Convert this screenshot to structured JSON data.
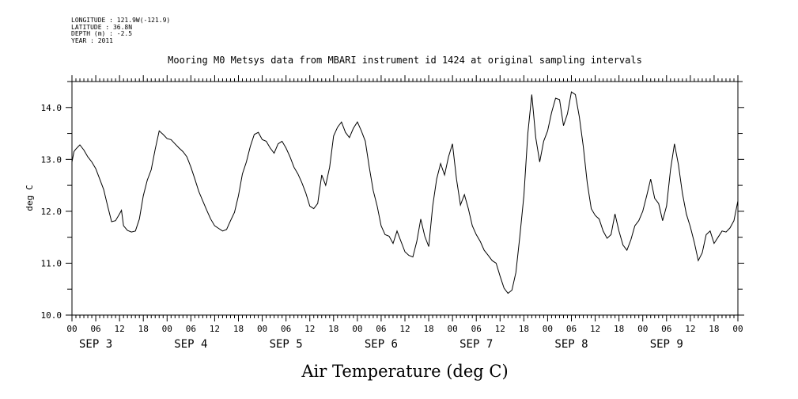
{
  "header": {
    "longitude": "LONGITUDE : 121.9W(-121.9)",
    "latitude": "LATITUDE : 36.8N",
    "depth": "DEPTH (m) : -2.5",
    "year": "YEAR : 2011"
  },
  "chart_data": {
    "type": "line",
    "title": "Mooring M0 Metsys data from MBARI instrument id 1424 at original sampling intervals",
    "xlabel": "Air Temperature (deg C)",
    "ylabel": "deg C",
    "ylim": [
      10.0,
      14.5
    ],
    "xlim_hours": [
      0,
      168
    ],
    "y_ticks": [
      "10.0",
      "11.0",
      "12.0",
      "13.0",
      "14.0"
    ],
    "x_tick_labels": [
      "00",
      "06",
      "12",
      "18",
      "00",
      "06",
      "12",
      "18",
      "00",
      "06",
      "12",
      "18",
      "00",
      "06",
      "12",
      "18",
      "00",
      "06",
      "12",
      "18",
      "00",
      "06",
      "12",
      "18",
      "00",
      "06",
      "12",
      "18",
      "00"
    ],
    "day_labels": [
      "SEP  3",
      "SEP  4",
      "SEP  5",
      "SEP  6",
      "SEP  7",
      "SEP  8",
      "SEP  9"
    ],
    "grid": false,
    "series": [
      {
        "color": "#000000",
        "points": [
          [
            0,
            12.95
          ],
          [
            0.5,
            13.15
          ],
          [
            1,
            13.2
          ],
          [
            2,
            13.28
          ],
          [
            3,
            13.18
          ],
          [
            4,
            13.05
          ],
          [
            5,
            12.95
          ],
          [
            6,
            12.82
          ],
          [
            7,
            12.62
          ],
          [
            8,
            12.42
          ],
          [
            9,
            12.1
          ],
          [
            10,
            11.8
          ],
          [
            11,
            11.82
          ],
          [
            12,
            11.95
          ],
          [
            12.5,
            12.02
          ],
          [
            13,
            11.72
          ],
          [
            14,
            11.63
          ],
          [
            15,
            11.6
          ],
          [
            16,
            11.62
          ],
          [
            17,
            11.85
          ],
          [
            18,
            12.3
          ],
          [
            19,
            12.6
          ],
          [
            20,
            12.8
          ],
          [
            21,
            13.2
          ],
          [
            22,
            13.55
          ],
          [
            23,
            13.48
          ],
          [
            24,
            13.4
          ],
          [
            25,
            13.38
          ],
          [
            26,
            13.3
          ],
          [
            27,
            13.22
          ],
          [
            28,
            13.15
          ],
          [
            29,
            13.05
          ],
          [
            30,
            12.85
          ],
          [
            31,
            12.62
          ],
          [
            32,
            12.38
          ],
          [
            33,
            12.2
          ],
          [
            34,
            12.02
          ],
          [
            35,
            11.85
          ],
          [
            36,
            11.72
          ],
          [
            37,
            11.67
          ],
          [
            38,
            11.62
          ],
          [
            39,
            11.65
          ],
          [
            40,
            11.82
          ],
          [
            41,
            11.98
          ],
          [
            42,
            12.3
          ],
          [
            43,
            12.72
          ],
          [
            44,
            12.95
          ],
          [
            45,
            13.25
          ],
          [
            46,
            13.48
          ],
          [
            47,
            13.52
          ],
          [
            48,
            13.38
          ],
          [
            49,
            13.35
          ],
          [
            50,
            13.22
          ],
          [
            51,
            13.12
          ],
          [
            52,
            13.3
          ],
          [
            53,
            13.35
          ],
          [
            54,
            13.22
          ],
          [
            55,
            13.05
          ],
          [
            56,
            12.85
          ],
          [
            57,
            12.72
          ],
          [
            58,
            12.55
          ],
          [
            59,
            12.35
          ],
          [
            60,
            12.1
          ],
          [
            61,
            12.05
          ],
          [
            62,
            12.15
          ],
          [
            63,
            12.7
          ],
          [
            64,
            12.5
          ],
          [
            65,
            12.85
          ],
          [
            66,
            13.45
          ],
          [
            67,
            13.62
          ],
          [
            68,
            13.72
          ],
          [
            69,
            13.52
          ],
          [
            70,
            13.42
          ],
          [
            71,
            13.6
          ],
          [
            72,
            13.72
          ],
          [
            73,
            13.55
          ],
          [
            74,
            13.35
          ],
          [
            75,
            12.85
          ],
          [
            76,
            12.4
          ],
          [
            77,
            12.1
          ],
          [
            78,
            11.72
          ],
          [
            79,
            11.55
          ],
          [
            80,
            11.52
          ],
          [
            81,
            11.38
          ],
          [
            82,
            11.62
          ],
          [
            83,
            11.42
          ],
          [
            84,
            11.22
          ],
          [
            85,
            11.15
          ],
          [
            86,
            11.12
          ],
          [
            87,
            11.42
          ],
          [
            88,
            11.85
          ],
          [
            89,
            11.52
          ],
          [
            90,
            11.32
          ],
          [
            91,
            12.1
          ],
          [
            92,
            12.62
          ],
          [
            93,
            12.92
          ],
          [
            94,
            12.7
          ],
          [
            95,
            13.05
          ],
          [
            96,
            13.3
          ],
          [
            97,
            12.62
          ],
          [
            98,
            12.12
          ],
          [
            99,
            12.32
          ],
          [
            100,
            12.05
          ],
          [
            101,
            11.72
          ],
          [
            102,
            11.55
          ],
          [
            103,
            11.42
          ],
          [
            104,
            11.25
          ],
          [
            105,
            11.15
          ],
          [
            106,
            11.05
          ],
          [
            107,
            11.0
          ],
          [
            108,
            10.75
          ],
          [
            109,
            10.52
          ],
          [
            110,
            10.42
          ],
          [
            111,
            10.48
          ],
          [
            112,
            10.82
          ],
          [
            113,
            11.52
          ],
          [
            114,
            12.3
          ],
          [
            115,
            13.5
          ],
          [
            116,
            14.25
          ],
          [
            117,
            13.42
          ],
          [
            118,
            12.95
          ],
          [
            119,
            13.35
          ],
          [
            120,
            13.55
          ],
          [
            121,
            13.9
          ],
          [
            122,
            14.18
          ],
          [
            123,
            14.15
          ],
          [
            124,
            13.65
          ],
          [
            125,
            13.88
          ],
          [
            126,
            14.3
          ],
          [
            127,
            14.25
          ],
          [
            128,
            13.82
          ],
          [
            129,
            13.25
          ],
          [
            130,
            12.55
          ],
          [
            131,
            12.05
          ],
          [
            132,
            11.92
          ],
          [
            133,
            11.85
          ],
          [
            134,
            11.62
          ],
          [
            135,
            11.48
          ],
          [
            136,
            11.55
          ],
          [
            137,
            11.95
          ],
          [
            138,
            11.62
          ],
          [
            139,
            11.35
          ],
          [
            140,
            11.25
          ],
          [
            141,
            11.45
          ],
          [
            142,
            11.72
          ],
          [
            143,
            11.82
          ],
          [
            144,
            12.0
          ],
          [
            145,
            12.3
          ],
          [
            146,
            12.62
          ],
          [
            147,
            12.25
          ],
          [
            148,
            12.15
          ],
          [
            149,
            11.82
          ],
          [
            150,
            12.1
          ],
          [
            151,
            12.8
          ],
          [
            152,
            13.3
          ],
          [
            153,
            12.9
          ],
          [
            154,
            12.35
          ],
          [
            155,
            11.95
          ],
          [
            156,
            11.7
          ],
          [
            157,
            11.4
          ],
          [
            158,
            11.05
          ],
          [
            159,
            11.2
          ],
          [
            160,
            11.55
          ],
          [
            161,
            11.62
          ],
          [
            162,
            11.38
          ],
          [
            163,
            11.5
          ],
          [
            164,
            11.62
          ],
          [
            165,
            11.6
          ],
          [
            166,
            11.68
          ],
          [
            167,
            11.82
          ],
          [
            168,
            12.2
          ],
          [
            169,
            12.85
          ],
          [
            170,
            12.55
          ],
          [
            171,
            12.15
          ],
          [
            172,
            12.35
          ],
          [
            173,
            12.58
          ],
          [
            174,
            12.78
          ],
          [
            175,
            12.45
          ],
          [
            176,
            12.28
          ],
          [
            177,
            12.15
          ],
          [
            178,
            12.05
          ]
        ]
      }
    ]
  }
}
